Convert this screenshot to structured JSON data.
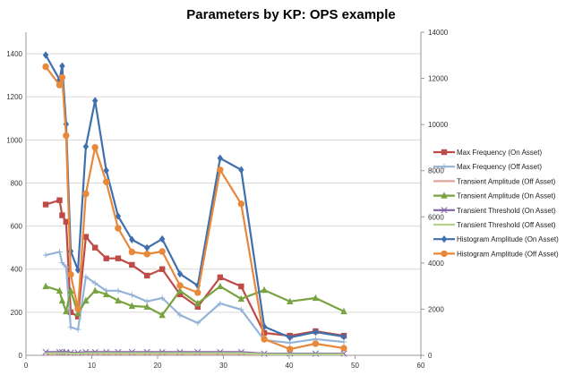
{
  "chart_data": {
    "type": "line",
    "title": "Parameters by KP: OPS example",
    "xlabel": "",
    "ylabel": "",
    "y2label": "",
    "xlim": [
      0,
      60
    ],
    "ylim": [
      0,
      1500
    ],
    "y2lim": [
      0,
      14000
    ],
    "xticks": [
      "0",
      "10",
      "20",
      "30",
      "40",
      "50",
      "60"
    ],
    "yticks": [
      "0",
      "200",
      "400",
      "600",
      "800",
      "1000",
      "1200",
      "1400"
    ],
    "y2ticks": [
      "0",
      "2000",
      "4000",
      "6000",
      "8000",
      "10000",
      "12000",
      "14000"
    ],
    "grid": true,
    "legend_position": "right",
    "x": [
      3,
      5.1,
      5.5,
      6.1,
      6.8,
      7.9,
      9.1,
      10.5,
      12.2,
      14,
      16.1,
      18.4,
      20.7,
      23.4,
      26.1,
      29.5,
      32.7,
      36.2,
      40.1,
      44,
      48.3
    ],
    "series": [
      {
        "name": "Max Frequency (On Asset)",
        "color": "#be4b48",
        "marker": "square",
        "values": [
          700,
          720,
          650,
          620,
          200,
          180,
          550,
          500,
          450,
          450,
          420,
          370,
          400,
          283,
          225,
          362,
          320,
          104,
          91,
          112,
          91
        ]
      },
      {
        "name": "Max Frequency (Off Asset)",
        "color": "#95b3d7",
        "marker": "plus",
        "values": [
          465,
          480,
          430,
          410,
          130,
          120,
          365,
          335,
          300,
          300,
          280,
          250,
          266,
          187,
          150,
          241,
          212,
          71,
          58,
          75,
          62
        ]
      },
      {
        "name": "Transient Amplitude (Off Asset)",
        "color": "#e6a09e",
        "marker": "none",
        "values": [
          5,
          5,
          5,
          5,
          5,
          5,
          5,
          5,
          5,
          5,
          5,
          5,
          5,
          5,
          5,
          5,
          5,
          5,
          5,
          5,
          5
        ]
      },
      {
        "name": "Transient Amplitude (On Asset)",
        "color": "#78a340",
        "marker": "triangle",
        "values": [
          320,
          300,
          254,
          204,
          300,
          195,
          254,
          300,
          283,
          254,
          229,
          225,
          187,
          300,
          241,
          320,
          262,
          303,
          250,
          266,
          204
        ]
      },
      {
        "name": "Transient Threshold (On Asset)",
        "color": "#7f63a8",
        "marker": "x",
        "values": [
          15,
          15,
          15,
          15,
          12,
          12,
          15,
          15,
          15,
          15,
          15,
          15,
          15,
          15,
          15,
          15,
          15,
          8,
          8,
          8,
          8
        ]
      },
      {
        "name": "Transient Threshold (Off Asset)",
        "color": "#b5d28b",
        "marker": "none",
        "values": [
          10,
          10,
          10,
          10,
          8,
          8,
          10,
          10,
          10,
          10,
          10,
          10,
          10,
          10,
          10,
          10,
          10,
          5,
          5,
          5,
          5
        ]
      },
      {
        "name": "Histogram Amplitude (On Asset)",
        "color": "#3f6fad",
        "marker": "diamond",
        "values": [
          1394,
          1280,
          1343,
          1073,
          483,
          396,
          969,
          1182,
          858,
          646,
          537,
          499,
          540,
          378,
          324,
          915,
          861,
          133,
          83,
          108,
          87
        ]
      },
      {
        "name": "Histogram Amplitude (Off Asset)",
        "color": "#e8883a",
        "marker": "circle",
        "values": [
          1340,
          1255,
          1290,
          1020,
          375,
          215,
          750,
          965,
          805,
          590,
          480,
          470,
          482,
          324,
          291,
          861,
          703,
          75,
          29,
          54,
          33
        ]
      }
    ]
  }
}
